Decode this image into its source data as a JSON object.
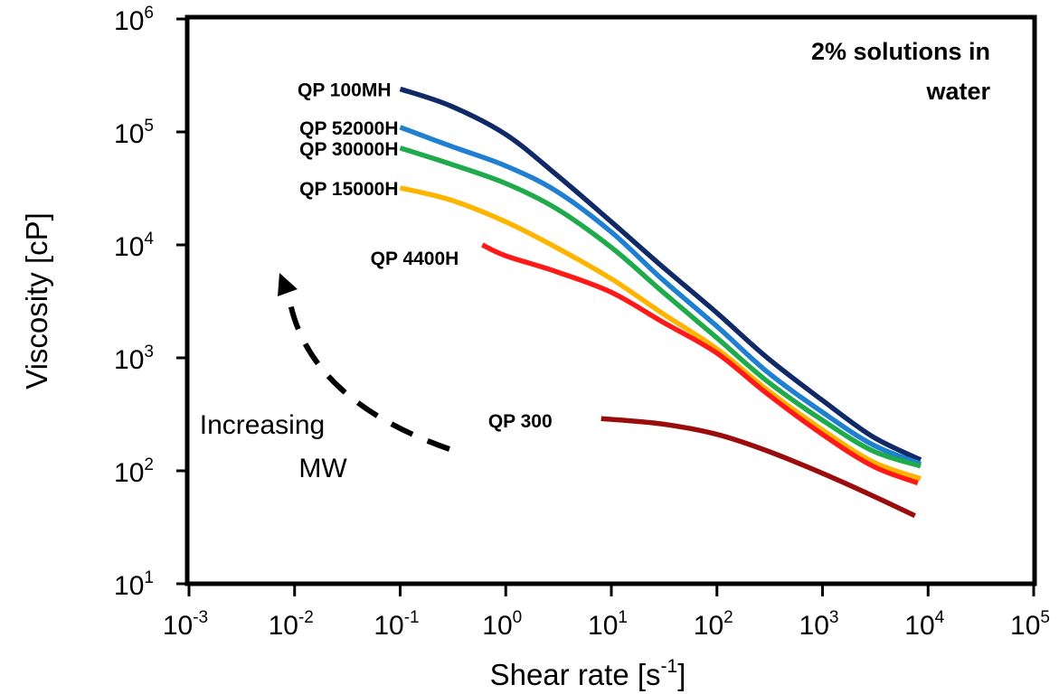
{
  "chart_data": {
    "type": "line",
    "title": "",
    "annotation_box": [
      "2% solutions in",
      "water"
    ],
    "xlabel": "Shear rate [s",
    "xlabel_sup": "-1",
    "xlabel_end": "]",
    "ylabel": "Viscosity [cP]",
    "x_scale": "log",
    "y_scale": "log",
    "xlim": [
      0.001,
      100000
    ],
    "ylim": [
      10,
      1000000
    ],
    "grid": false,
    "legend": "labels placed at left end of each curve",
    "x_ticks": [
      {
        "base": "10",
        "exp": "-3"
      },
      {
        "base": "10",
        "exp": "-2"
      },
      {
        "base": "10",
        "exp": "-1"
      },
      {
        "base": "10",
        "exp": "0"
      },
      {
        "base": "10",
        "exp": "1"
      },
      {
        "base": "10",
        "exp": "2"
      },
      {
        "base": "10",
        "exp": "3"
      },
      {
        "base": "10",
        "exp": "4"
      },
      {
        "base": "10",
        "exp": "5"
      }
    ],
    "y_ticks": [
      {
        "base": "10",
        "exp": "1"
      },
      {
        "base": "10",
        "exp": "2"
      },
      {
        "base": "10",
        "exp": "3"
      },
      {
        "base": "10",
        "exp": "4"
      },
      {
        "base": "10",
        "exp": "5"
      },
      {
        "base": "10",
        "exp": "6"
      }
    ],
    "series": [
      {
        "name": "QP 100MH",
        "color": "#0f2a66",
        "points": [
          [
            0.1,
            240000
          ],
          [
            0.3,
            170000
          ],
          [
            1,
            95000
          ],
          [
            3,
            42000
          ],
          [
            10,
            16000
          ],
          [
            30,
            6500
          ],
          [
            100,
            2500
          ],
          [
            300,
            1000
          ],
          [
            1000,
            420
          ],
          [
            3000,
            200
          ],
          [
            8500,
            125
          ]
        ]
      },
      {
        "name": "QP 52000H",
        "color": "#1f7fd0",
        "points": [
          [
            0.1,
            110000
          ],
          [
            0.3,
            75000
          ],
          [
            1,
            50000
          ],
          [
            3,
            30000
          ],
          [
            10,
            13000
          ],
          [
            30,
            5000
          ],
          [
            100,
            1900
          ],
          [
            300,
            750
          ],
          [
            1000,
            330
          ],
          [
            3000,
            170
          ],
          [
            8500,
            115
          ]
        ]
      },
      {
        "name": "QP 30000H",
        "color": "#1faa4b",
        "points": [
          [
            0.1,
            72000
          ],
          [
            0.3,
            52000
          ],
          [
            1,
            35000
          ],
          [
            3,
            21000
          ],
          [
            10,
            9500
          ],
          [
            30,
            3900
          ],
          [
            100,
            1500
          ],
          [
            300,
            620
          ],
          [
            1000,
            280
          ],
          [
            3000,
            150
          ],
          [
            8500,
            110
          ]
        ]
      },
      {
        "name": "QP 15000H",
        "color": "#ffb400",
        "points": [
          [
            0.1,
            32000
          ],
          [
            0.3,
            25000
          ],
          [
            1,
            16000
          ],
          [
            3,
            9500
          ],
          [
            10,
            5000
          ],
          [
            30,
            2500
          ],
          [
            100,
            1200
          ],
          [
            300,
            520
          ],
          [
            1000,
            230
          ],
          [
            3000,
            120
          ],
          [
            8500,
            85
          ]
        ]
      },
      {
        "name": "QP 4400H",
        "color": "#ff1a1a",
        "points": [
          [
            0.6,
            10000
          ],
          [
            1,
            8000
          ],
          [
            3,
            5800
          ],
          [
            10,
            3800
          ],
          [
            30,
            2100
          ],
          [
            100,
            1100
          ],
          [
            300,
            480
          ],
          [
            1000,
            210
          ],
          [
            3000,
            110
          ],
          [
            8000,
            78
          ]
        ]
      },
      {
        "name": "QP 300",
        "color": "#9b0c0c",
        "points": [
          [
            8,
            290
          ],
          [
            30,
            260
          ],
          [
            100,
            210
          ],
          [
            300,
            150
          ],
          [
            1000,
            95
          ],
          [
            3000,
            60
          ],
          [
            7500,
            40
          ]
        ]
      }
    ],
    "annotation_arrow": {
      "text_line1": "Increasing",
      "text_line2": "MW"
    }
  }
}
